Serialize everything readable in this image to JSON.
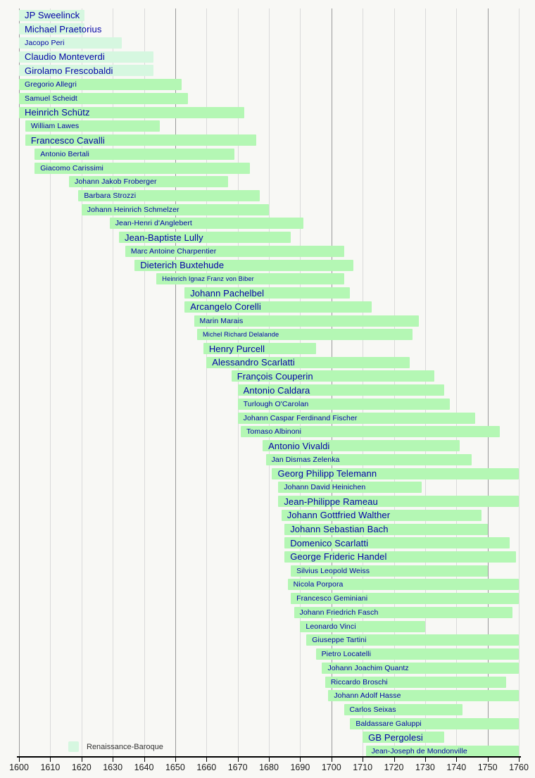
{
  "legend": {
    "label": "Renaissance-Baroque",
    "swatch_color": "#d6f7e0"
  },
  "axis": {
    "start_year": 1600,
    "end_year": 1760,
    "tick_interval": 10,
    "ticks": [
      1600,
      1610,
      1620,
      1630,
      1640,
      1650,
      1660,
      1670,
      1680,
      1690,
      1700,
      1710,
      1720,
      1730,
      1740,
      1750,
      1760
    ]
  },
  "colors": {
    "background": "#f8f8f5",
    "bar_baroque": "#b4f7b4",
    "bar_renaissance_baroque": "#d6f7e0",
    "label_text": "#0202a6",
    "gridline": "#dadada",
    "gridline_major": "#9a9a9a",
    "axis": "#000000",
    "axis_text": "#1a1a1a"
  },
  "chart_data": {
    "type": "bar",
    "variant": "gantt-timeline",
    "title": "",
    "xlabel": "",
    "ylabel": "",
    "xlim": [
      1600,
      1760
    ],
    "grid": true,
    "legend_position": "bottom-left",
    "composers": [
      {
        "name": "JP Sweelinck",
        "start": 1600,
        "end": 1621,
        "clipped_left": true,
        "clipped_right": false,
        "period": "renaissance-baroque",
        "emphasis": "large"
      },
      {
        "name": "Michael Praetorius",
        "start": 1600,
        "end": 1621,
        "clipped_left": true,
        "clipped_right": false,
        "period": "renaissance-baroque",
        "emphasis": "large"
      },
      {
        "name": "Jacopo Peri",
        "start": 1600,
        "end": 1633,
        "clipped_left": true,
        "clipped_right": false,
        "period": "renaissance-baroque",
        "emphasis": "medium"
      },
      {
        "name": "Claudio Monteverdi",
        "start": 1600,
        "end": 1643,
        "clipped_left": true,
        "clipped_right": false,
        "period": "renaissance-baroque",
        "emphasis": "large"
      },
      {
        "name": "Girolamo Frescobaldi",
        "start": 1600,
        "end": 1643,
        "clipped_left": true,
        "clipped_right": false,
        "period": "renaissance-baroque",
        "emphasis": "large"
      },
      {
        "name": "Gregorio Allegri",
        "start": 1600,
        "end": 1652,
        "clipped_left": true,
        "clipped_right": false,
        "period": "baroque",
        "emphasis": "medium"
      },
      {
        "name": "Samuel Scheidt",
        "start": 1600,
        "end": 1654,
        "clipped_left": true,
        "clipped_right": false,
        "period": "baroque",
        "emphasis": "medium"
      },
      {
        "name": "Heinrich Schütz",
        "start": 1600,
        "end": 1672,
        "clipped_left": true,
        "clipped_right": false,
        "period": "baroque",
        "emphasis": "large"
      },
      {
        "name": "William Lawes",
        "start": 1602,
        "end": 1645,
        "clipped_left": false,
        "clipped_right": false,
        "period": "baroque",
        "emphasis": "medium"
      },
      {
        "name": "Francesco Cavalli",
        "start": 1602,
        "end": 1676,
        "clipped_left": false,
        "clipped_right": false,
        "period": "baroque",
        "emphasis": "large"
      },
      {
        "name": "Antonio Bertali",
        "start": 1605,
        "end": 1669,
        "clipped_left": false,
        "clipped_right": false,
        "period": "baroque",
        "emphasis": "medium"
      },
      {
        "name": "Giacomo Carissimi",
        "start": 1605,
        "end": 1674,
        "clipped_left": false,
        "clipped_right": false,
        "period": "baroque",
        "emphasis": "medium"
      },
      {
        "name": "Johann Jakob Froberger",
        "start": 1616,
        "end": 1667,
        "clipped_left": false,
        "clipped_right": false,
        "period": "baroque",
        "emphasis": "medium"
      },
      {
        "name": "Barbara Strozzi",
        "start": 1619,
        "end": 1677,
        "clipped_left": false,
        "clipped_right": false,
        "period": "baroque",
        "emphasis": "medium"
      },
      {
        "name": "Johann Heinrich Schmelzer",
        "start": 1620,
        "end": 1680,
        "clipped_left": false,
        "clipped_right": false,
        "period": "baroque",
        "emphasis": "medium"
      },
      {
        "name": "Jean-Henri d'Anglebert",
        "start": 1629,
        "end": 1691,
        "clipped_left": false,
        "clipped_right": false,
        "period": "baroque",
        "emphasis": "medium"
      },
      {
        "name": "Jean-Baptiste Lully",
        "start": 1632,
        "end": 1687,
        "clipped_left": false,
        "clipped_right": false,
        "period": "baroque",
        "emphasis": "large"
      },
      {
        "name": "Marc Antoine Charpentier",
        "start": 1634,
        "end": 1704,
        "clipped_left": false,
        "clipped_right": false,
        "period": "baroque",
        "emphasis": "medium"
      },
      {
        "name": "Dieterich Buxtehude",
        "start": 1637,
        "end": 1707,
        "clipped_left": false,
        "clipped_right": false,
        "period": "baroque",
        "emphasis": "large"
      },
      {
        "name": "Heinrich Ignaz Franz von Biber",
        "start": 1644,
        "end": 1704,
        "clipped_left": false,
        "clipped_right": false,
        "period": "baroque",
        "emphasis": "small"
      },
      {
        "name": "Johann Pachelbel",
        "start": 1653,
        "end": 1706,
        "clipped_left": false,
        "clipped_right": false,
        "period": "baroque",
        "emphasis": "large"
      },
      {
        "name": "Arcangelo Corelli",
        "start": 1653,
        "end": 1713,
        "clipped_left": false,
        "clipped_right": false,
        "period": "baroque",
        "emphasis": "large"
      },
      {
        "name": "Marin Marais",
        "start": 1656,
        "end": 1728,
        "clipped_left": false,
        "clipped_right": false,
        "period": "baroque",
        "emphasis": "medium"
      },
      {
        "name": "Michel Richard Delalande",
        "start": 1657,
        "end": 1726,
        "clipped_left": false,
        "clipped_right": false,
        "period": "baroque",
        "emphasis": "small"
      },
      {
        "name": "Henry Purcell",
        "start": 1659,
        "end": 1695,
        "clipped_left": false,
        "clipped_right": false,
        "period": "baroque",
        "emphasis": "large"
      },
      {
        "name": "Alessandro Scarlatti",
        "start": 1660,
        "end": 1725,
        "clipped_left": false,
        "clipped_right": false,
        "period": "baroque",
        "emphasis": "large"
      },
      {
        "name": "François Couperin",
        "start": 1668,
        "end": 1733,
        "clipped_left": false,
        "clipped_right": false,
        "period": "baroque",
        "emphasis": "large"
      },
      {
        "name": "Antonio Caldara",
        "start": 1670,
        "end": 1736,
        "clipped_left": false,
        "clipped_right": false,
        "period": "baroque",
        "emphasis": "large"
      },
      {
        "name": "Turlough O'Carolan",
        "start": 1670,
        "end": 1738,
        "clipped_left": false,
        "clipped_right": false,
        "period": "baroque",
        "emphasis": "medium"
      },
      {
        "name": "Johann Caspar Ferdinand Fischer",
        "start": 1670,
        "end": 1746,
        "clipped_left": false,
        "clipped_right": false,
        "period": "baroque",
        "emphasis": "medium"
      },
      {
        "name": "Tomaso Albinoni",
        "start": 1671,
        "end": 1754,
        "clipped_left": false,
        "clipped_right": false,
        "period": "baroque",
        "emphasis": "medium"
      },
      {
        "name": "Antonio Vivaldi",
        "start": 1678,
        "end": 1741,
        "clipped_left": false,
        "clipped_right": false,
        "period": "baroque",
        "emphasis": "large"
      },
      {
        "name": "Jan Dismas Zelenka",
        "start": 1679,
        "end": 1745,
        "clipped_left": false,
        "clipped_right": false,
        "period": "baroque",
        "emphasis": "medium"
      },
      {
        "name": "Georg Philipp Telemann",
        "start": 1681,
        "end": 1760,
        "clipped_left": false,
        "clipped_right": true,
        "period": "baroque",
        "emphasis": "large"
      },
      {
        "name": "Johann David Heinichen",
        "start": 1683,
        "end": 1729,
        "clipped_left": false,
        "clipped_right": false,
        "period": "baroque",
        "emphasis": "medium"
      },
      {
        "name": "Jean-Philippe Rameau",
        "start": 1683,
        "end": 1760,
        "clipped_left": false,
        "clipped_right": true,
        "period": "baroque",
        "emphasis": "large"
      },
      {
        "name": "Johann Gottfried Walther",
        "start": 1684,
        "end": 1748,
        "clipped_left": false,
        "clipped_right": false,
        "period": "baroque",
        "emphasis": "large"
      },
      {
        "name": "Johann Sebastian Bach",
        "start": 1685,
        "end": 1750,
        "clipped_left": false,
        "clipped_right": false,
        "period": "baroque",
        "emphasis": "large"
      },
      {
        "name": "Domenico Scarlatti",
        "start": 1685,
        "end": 1757,
        "clipped_left": false,
        "clipped_right": false,
        "period": "baroque",
        "emphasis": "large"
      },
      {
        "name": "George Frideric Handel",
        "start": 1685,
        "end": 1759,
        "clipped_left": false,
        "clipped_right": false,
        "period": "baroque",
        "emphasis": "large"
      },
      {
        "name": "Silvius Leopold Weiss",
        "start": 1687,
        "end": 1750,
        "clipped_left": false,
        "clipped_right": false,
        "period": "baroque",
        "emphasis": "medium"
      },
      {
        "name": "Nicola Porpora",
        "start": 1686,
        "end": 1760,
        "clipped_left": false,
        "clipped_right": true,
        "period": "baroque",
        "emphasis": "medium"
      },
      {
        "name": "Francesco Geminiani",
        "start": 1687,
        "end": 1760,
        "clipped_left": false,
        "clipped_right": true,
        "period": "baroque",
        "emphasis": "medium"
      },
      {
        "name": "Johann Friedrich Fasch",
        "start": 1688,
        "end": 1758,
        "clipped_left": false,
        "clipped_right": false,
        "period": "baroque",
        "emphasis": "medium"
      },
      {
        "name": "Leonardo Vinci",
        "start": 1690,
        "end": 1730,
        "clipped_left": false,
        "clipped_right": false,
        "period": "baroque",
        "emphasis": "medium"
      },
      {
        "name": "Giuseppe Tartini",
        "start": 1692,
        "end": 1760,
        "clipped_left": false,
        "clipped_right": true,
        "period": "baroque",
        "emphasis": "medium"
      },
      {
        "name": "Pietro Locatelli",
        "start": 1695,
        "end": 1760,
        "clipped_left": false,
        "clipped_right": true,
        "period": "baroque",
        "emphasis": "medium"
      },
      {
        "name": "Johann Joachim Quantz",
        "start": 1697,
        "end": 1760,
        "clipped_left": false,
        "clipped_right": true,
        "period": "baroque",
        "emphasis": "medium"
      },
      {
        "name": "Riccardo Broschi",
        "start": 1698,
        "end": 1756,
        "clipped_left": false,
        "clipped_right": false,
        "period": "baroque",
        "emphasis": "medium"
      },
      {
        "name": "Johann Adolf Hasse",
        "start": 1699,
        "end": 1760,
        "clipped_left": false,
        "clipped_right": true,
        "period": "baroque",
        "emphasis": "medium"
      },
      {
        "name": "Carlos Seixas",
        "start": 1704,
        "end": 1742,
        "clipped_left": false,
        "clipped_right": false,
        "period": "baroque",
        "emphasis": "medium"
      },
      {
        "name": "Baldassare Galuppi",
        "start": 1706,
        "end": 1760,
        "clipped_left": false,
        "clipped_right": true,
        "period": "baroque",
        "emphasis": "medium"
      },
      {
        "name": "GB Pergolesi",
        "start": 1710,
        "end": 1736,
        "clipped_left": false,
        "clipped_right": false,
        "period": "baroque",
        "emphasis": "large"
      },
      {
        "name": "Jean-Joseph de Mondonville",
        "start": 1711,
        "end": 1760,
        "clipped_left": false,
        "clipped_right": true,
        "period": "baroque",
        "emphasis": "medium"
      }
    ]
  }
}
